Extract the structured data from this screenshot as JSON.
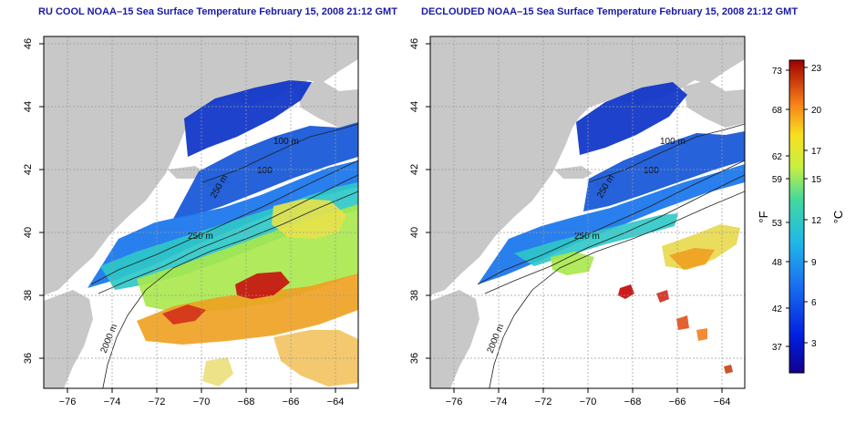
{
  "panels": [
    {
      "title": "RU COOL NOAA–15 Sea Surface Temperature February 15, 2008 21:12 GMT",
      "contours": [
        "100 m",
        "100",
        "250 m",
        "250 m",
        "2000 m"
      ]
    },
    {
      "title": "DECLOUDED NOAA–15 Sea Surface Temperature February 15, 2008 21:12 GMT",
      "contours": [
        "100 m",
        "100",
        "250 m",
        "250 m",
        "2000 m"
      ]
    }
  ],
  "axes": {
    "x_ticks": [
      "−76",
      "−74",
      "−72",
      "−70",
      "−68",
      "−66",
      "−64"
    ],
    "y_ticks": [
      "46",
      "44",
      "42",
      "40",
      "38",
      "36"
    ]
  },
  "colorbar": {
    "f_label": "°F",
    "c_label": "°C",
    "f_ticks": [
      "73",
      "68",
      "62",
      "59",
      "53",
      "48",
      "42",
      "37"
    ],
    "c_ticks": [
      "23",
      "20",
      "17",
      "15",
      "12",
      "9",
      "6",
      "3"
    ]
  },
  "colors": {
    "land": "#c8c8c8",
    "cold": "#1238c8",
    "cool": "#1e78ec",
    "mid": "#2ec8c8",
    "warm": "#a8e84a",
    "hot": "#f0a020",
    "hottest": "#c81010",
    "title": "#1a1aa6"
  }
}
